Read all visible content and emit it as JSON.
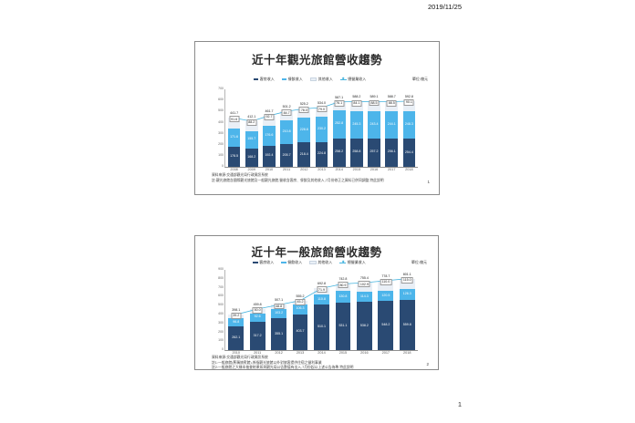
{
  "page": {
    "date": "2019/11/25",
    "page_number": "1"
  },
  "slides": [
    {
      "slide_number": "1",
      "footnotes": [
        "資料來源:交通部觀光局行政資訊系統",
        "註:觀光旅館含國際觀光旅館及一般觀光旅館,營收含客房、餐飲及其他收入,7月份修正之資料已併同調整,特此說明"
      ]
    },
    {
      "slide_number": "2",
      "footnotes": [
        "資料來源:交通部觀光局行政資訊系統",
        "註1:一般旅館(舊稱旅賓館),係指觀光旅館以外對旅客提供住宿之營利事業",
        "註2:一般旅館之大樣本抽查結果如與觀光局公告數值有出入,7月份起以上述公告為準,特此說明"
      ]
    }
  ],
  "chart_data": [
    {
      "type": "bar",
      "stacked": true,
      "title": "近十年觀光旅館營收趨勢",
      "unit": "單位:億元",
      "categories": [
        "2008",
        "2009",
        "2010",
        "2011",
        "2012",
        "2013",
        "2014",
        "2015",
        "2016",
        "2017",
        "2018"
      ],
      "series": [
        {
          "name": "客房收入",
          "type": "bar",
          "color": "#2A4A73",
          "values": [
            178.5,
            168.2,
            192.4,
            205.7,
            218.4,
            224.8,
            258.2,
            258.8,
            257.2,
            256.1,
            254.4
          ]
        },
        {
          "name": "餐飲收入",
          "type": "bar",
          "color": "#4DB5EA",
          "values": [
            171.6,
            155.7,
            176.6,
            210.8,
            228.8,
            230.2,
            252.8,
            245.3,
            243.4,
            244.1,
            248.3
          ]
        },
        {
          "name": "其他收入",
          "type": "bar",
          "color": "#E9EFF6",
          "values": [
            91.6,
            88.2,
            92.7,
            84.7,
            78.0,
            79.0,
            76.1,
            84.1,
            88.5,
            88.5,
            90.1
          ]
        },
        {
          "name": "總營業收入",
          "type": "line",
          "color": "#45B4DF",
          "values": [
            441.7,
            412.1,
            461.7,
            501.2,
            525.2,
            534.0,
            587.1,
            588.2,
            589.1,
            588.7,
            592.8
          ]
        }
      ],
      "xlabel": "",
      "ylabel": "",
      "ylim": [
        0,
        700
      ],
      "ytick_step": 100,
      "grid": false,
      "legend_position": "top"
    },
    {
      "type": "bar",
      "stacked": true,
      "title": "近十年一般旅館營收趨勢",
      "unit": "單位:億元",
      "categories": [
        "2010",
        "2011",
        "2012",
        "2013",
        "2014",
        "2015",
        "2016",
        "2017",
        "2018"
      ],
      "series": [
        {
          "name": "客房收入",
          "type": "bar",
          "color": "#2A4A73",
          "values": [
            262.1,
            317.2,
            355.1,
            403.7,
            510.1,
            531.1,
            538.2,
            548.2,
            559.8
          ]
        },
        {
          "name": "餐飲收入",
          "type": "bar",
          "color": "#4DB5EA",
          "values": [
            96.8,
            92.6,
            103.2,
            106.3,
            110.8,
            130.8,
            114.3,
            120.5,
            126.3
          ]
        },
        {
          "name": "其他收入",
          "type": "bar",
          "color": "#E9EFF6",
          "values": [
            39.2,
            50.0,
            48.8,
            45.2,
            71.9,
            80.9,
            102.9,
            110.0,
            115.0
          ]
        },
        {
          "name": "總營業收入",
          "type": "line",
          "color": "#45B4DF",
          "values": [
            398.1,
            459.8,
            507.1,
            555.2,
            692.8,
            742.8,
            755.4,
            778.7,
            801.1
          ]
        }
      ],
      "xlabel": "",
      "ylabel": "",
      "ylim": [
        0,
        900
      ],
      "ytick_step": 100,
      "grid": false,
      "legend_position": "top"
    }
  ]
}
